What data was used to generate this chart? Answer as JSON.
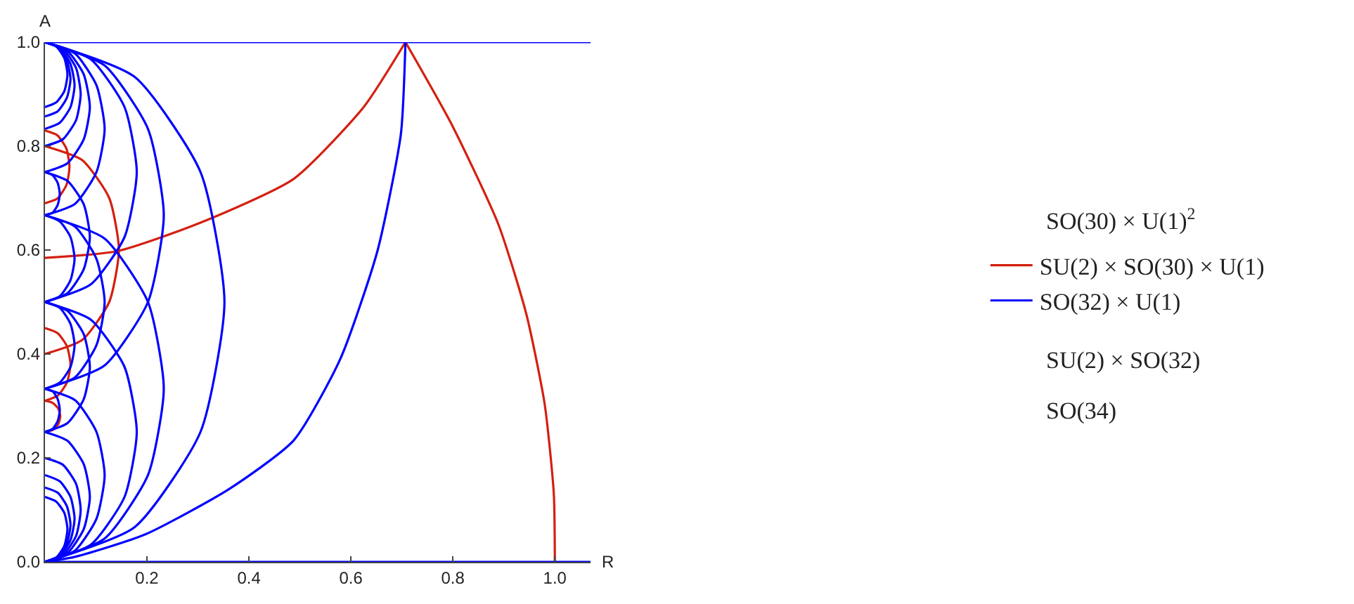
{
  "chart_data": {
    "type": "line",
    "xlabel": "R",
    "ylabel": "A",
    "xlim": [
      0,
      1.07
    ],
    "ylim": [
      0,
      1.0
    ],
    "xticks": [
      0.2,
      0.4,
      0.6,
      0.8,
      {
        "value": 1.0,
        "label": "1.0"
      }
    ],
    "yticks": [
      {
        "value": 0,
        "label": "0.0"
      },
      0.2,
      0.4,
      0.6,
      0.8,
      {
        "value": 1.0,
        "label": "1.0"
      }
    ],
    "legend": "right",
    "annotations": [
      "SO(30) × U(1)$^{2}$",
      "SU(2) × SO(32)",
      "SO(34)"
    ],
    "series": [
      {
        "name": "SU(2) × SO(30) × U(1)",
        "color": "#d42010",
        "x": [
          0.707,
          0.798,
          0.889,
          0.944,
          0.98,
          0.998,
          1.0
        ],
        "values": [
          1.0,
          0.841,
          0.65,
          0.477,
          0.304,
          0.131,
          0.0
        ]
      },
      {
        "color": "#d42010",
        "x": [
          0.0,
          0.142,
          0.306,
          0.488,
          0.625,
          0.707
        ],
        "values": [
          0.585,
          0.598,
          0.653,
          0.737,
          0.875,
          1.0
        ]
      },
      {
        "color": "#d42010",
        "x": [
          0.0,
          0.073,
          0.126,
          0.145,
          0.126,
          0.073,
          0.0
        ],
        "values": [
          0.8,
          0.773,
          0.7,
          0.6,
          0.5,
          0.427,
          0.4
        ]
      },
      {
        "color": "#d42010",
        "x": [
          0.0,
          0.024,
          0.042,
          0.048,
          0.042,
          0.024,
          0.0
        ],
        "values": [
          0.83,
          0.821,
          0.795,
          0.76,
          0.725,
          0.699,
          0.69
        ]
      },
      {
        "color": "#d42010",
        "x": [
          0.0,
          0.025,
          0.043,
          0.05,
          0.043,
          0.025,
          0.0
        ],
        "values": [
          0.45,
          0.44,
          0.415,
          0.38,
          0.345,
          0.32,
          0.31
        ]
      },
      {
        "color": "#d42010",
        "x": [
          0.0,
          0.015,
          0.026,
          0.03,
          0.026,
          0.015,
          0.0
        ],
        "values": [
          0.31,
          0.306,
          0.295,
          0.28,
          0.265,
          0.254,
          0.25
        ]
      },
      {
        "name": "SO(32) × U(1)",
        "color": "#0000ff",
        "x": [
          0.0,
          1.07
        ],
        "values": [
          1.0,
          1.0
        ]
      },
      {
        "color": "#0000ff",
        "x": [
          0.0,
          1.07
        ],
        "values": [
          0.0,
          0.0
        ]
      },
      {
        "color": "#0000ff",
        "x": [
          0.0,
          0.06,
          0.197,
          0.361,
          0.488,
          0.579,
          0.652,
          0.698,
          0.707
        ],
        "values": [
          0.0,
          0.01,
          0.053,
          0.14,
          0.234,
          0.39,
          0.598,
          0.823,
          1.0
        ]
      },
      {
        "color": "#0000ff",
        "x": [
          0.0,
          0.176,
          0.305,
          0.352,
          0.305,
          0.176,
          0.0
        ],
        "values": [
          1.0,
          0.933,
          0.75,
          0.5,
          0.25,
          0.067,
          0.0
        ]
      },
      {
        "color": "#0000ff",
        "x": [
          0.0,
          0.09,
          0.156,
          0.18,
          0.156,
          0.09,
          0.0
        ],
        "values": [
          1.0,
          0.967,
          0.875,
          0.75,
          0.625,
          0.534,
          0.5
        ]
      },
      {
        "color": "#0000ff",
        "x": [
          0.0,
          0.059,
          0.101,
          0.117,
          0.101,
          0.059,
          0.0
        ],
        "values": [
          1.0,
          0.978,
          0.917,
          0.833,
          0.75,
          0.689,
          0.667
        ]
      },
      {
        "color": "#0000ff",
        "x": [
          0.0,
          0.044,
          0.076,
          0.088,
          0.076,
          0.044,
          0.0
        ],
        "values": [
          1.0,
          0.983,
          0.938,
          0.875,
          0.813,
          0.767,
          0.75
        ]
      },
      {
        "color": "#0000ff",
        "x": [
          0.0,
          0.035,
          0.061,
          0.07,
          0.061,
          0.035,
          0.0
        ],
        "values": [
          1.0,
          0.987,
          0.95,
          0.9,
          0.85,
          0.813,
          0.8
        ]
      },
      {
        "color": "#0000ff",
        "x": [
          0.0,
          0.029,
          0.05,
          0.058,
          0.05,
          0.029,
          0.0
        ],
        "values": [
          1.0,
          0.989,
          0.958,
          0.917,
          0.875,
          0.845,
          0.833
        ]
      },
      {
        "color": "#0000ff",
        "x": [
          0.0,
          0.025,
          0.043,
          0.05,
          0.043,
          0.025,
          0.0
        ],
        "values": [
          1.0,
          0.99,
          0.964,
          0.929,
          0.893,
          0.867,
          0.857
        ]
      },
      {
        "color": "#0000ff",
        "x": [
          0.0,
          0.022,
          0.038,
          0.044,
          0.038,
          0.022,
          0.0
        ],
        "values": [
          1.0,
          0.992,
          0.969,
          0.938,
          0.906,
          0.884,
          0.875
        ]
      },
      {
        "color": "#0000ff",
        "x": [
          0.0,
          0.09,
          0.156,
          0.18,
          0.156,
          0.09,
          0.0
        ],
        "values": [
          0.0,
          0.033,
          0.125,
          0.25,
          0.375,
          0.466,
          0.5
        ]
      },
      {
        "color": "#0000ff",
        "x": [
          0.0,
          0.059,
          0.101,
          0.117,
          0.101,
          0.059,
          0.0
        ],
        "values": [
          0.0,
          0.022,
          0.083,
          0.167,
          0.25,
          0.311,
          0.333
        ]
      },
      {
        "color": "#0000ff",
        "x": [
          0.0,
          0.044,
          0.076,
          0.088,
          0.076,
          0.044,
          0.0
        ],
        "values": [
          0.0,
          0.017,
          0.063,
          0.125,
          0.188,
          0.233,
          0.25
        ]
      },
      {
        "color": "#0000ff",
        "x": [
          0.0,
          0.035,
          0.061,
          0.07,
          0.061,
          0.035,
          0.0
        ],
        "values": [
          0.0,
          0.013,
          0.05,
          0.1,
          0.15,
          0.187,
          0.2
        ]
      },
      {
        "color": "#0000ff",
        "x": [
          0.0,
          0.029,
          0.05,
          0.058,
          0.05,
          0.029,
          0.0
        ],
        "values": [
          0.0,
          0.011,
          0.042,
          0.083,
          0.125,
          0.155,
          0.167
        ]
      },
      {
        "color": "#0000ff",
        "x": [
          0.0,
          0.025,
          0.043,
          0.05,
          0.043,
          0.025,
          0.0
        ],
        "values": [
          0.0,
          0.01,
          0.036,
          0.071,
          0.107,
          0.133,
          0.143
        ]
      },
      {
        "color": "#0000ff",
        "x": [
          0.0,
          0.022,
          0.038,
          0.044,
          0.038,
          0.022,
          0.0
        ],
        "values": [
          0.0,
          0.008,
          0.031,
          0.063,
          0.094,
          0.116,
          0.125
        ]
      },
      {
        "color": "#0000ff",
        "x": [
          0.0,
          0.117,
          0.202,
          0.233,
          0.202,
          0.117,
          0.0
        ],
        "values": [
          1.0,
          0.955,
          0.833,
          0.667,
          0.5,
          0.378,
          0.333
        ]
      },
      {
        "color": "#0000ff",
        "x": [
          0.0,
          0.117,
          0.202,
          0.233,
          0.202,
          0.117,
          0.0
        ],
        "values": [
          0.0,
          0.045,
          0.167,
          0.333,
          0.5,
          0.622,
          0.667
        ]
      },
      {
        "color": "#0000ff",
        "x": [
          0.0,
          0.029,
          0.05,
          0.058,
          0.05,
          0.029,
          0.0
        ],
        "values": [
          0.667,
          0.655,
          0.625,
          0.583,
          0.542,
          0.511,
          0.5
        ]
      },
      {
        "color": "#0000ff",
        "x": [
          0.0,
          0.029,
          0.05,
          0.058,
          0.05,
          0.029,
          0.0
        ],
        "values": [
          0.5,
          0.489,
          0.458,
          0.417,
          0.375,
          0.345,
          0.333
        ]
      },
      {
        "color": "#0000ff",
        "x": [
          0.0,
          0.015,
          0.025,
          0.029,
          0.025,
          0.015,
          0.0
        ],
        "values": [
          0.75,
          0.744,
          0.729,
          0.708,
          0.687,
          0.672,
          0.667
        ]
      },
      {
        "color": "#0000ff",
        "x": [
          0.0,
          0.015,
          0.025,
          0.029,
          0.025,
          0.015,
          0.0
        ],
        "values": [
          0.333,
          0.328,
          0.313,
          0.292,
          0.271,
          0.256,
          0.25
        ]
      },
      {
        "color": "#0000ff",
        "x": [
          0.0,
          0.059,
          0.101,
          0.117,
          0.101,
          0.059,
          0.0
        ],
        "values": [
          0.667,
          0.645,
          0.583,
          0.5,
          0.417,
          0.355,
          0.333
        ]
      },
      {
        "color": "#0000ff",
        "x": [
          0.0,
          0.044,
          0.076,
          0.088,
          0.076,
          0.044,
          0.0
        ],
        "values": [
          0.5,
          0.483,
          0.438,
          0.375,
          0.313,
          0.267,
          0.25
        ]
      },
      {
        "color": "#0000ff",
        "x": [
          0.0,
          0.044,
          0.076,
          0.088,
          0.076,
          0.044,
          0.0
        ],
        "values": [
          0.75,
          0.733,
          0.688,
          0.625,
          0.563,
          0.517,
          0.5
        ]
      }
    ]
  }
}
